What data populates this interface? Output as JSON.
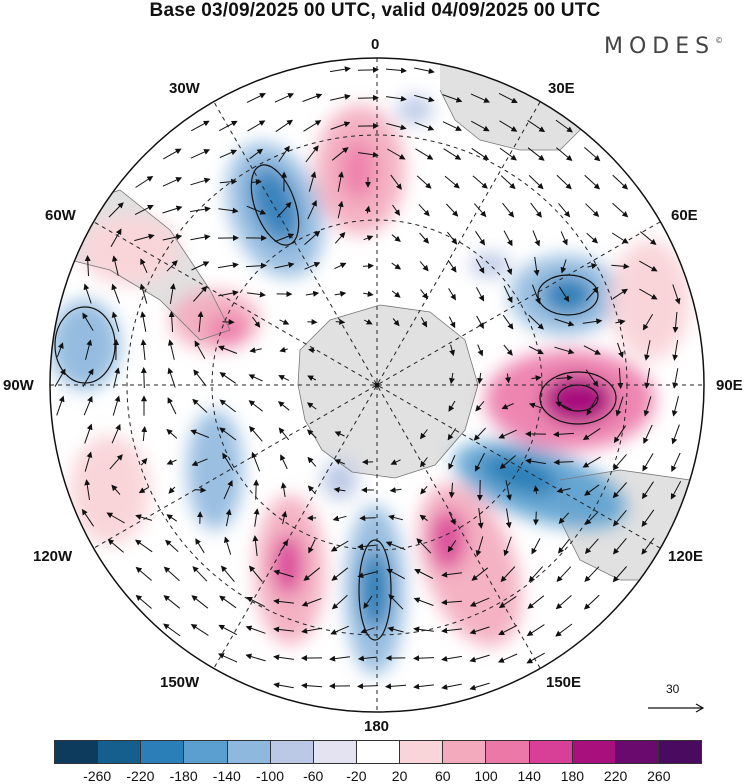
{
  "title": "Base 03/09/2025 00 UTC, valid 04/09/2025 00 UTC",
  "brand": {
    "name": "MODES",
    "mark": "©"
  },
  "longitude_labels": {
    "lon_0": "0",
    "lon_30e": "30E",
    "lon_60e": "60E",
    "lon_90e": "90E",
    "lon_120e": "120E",
    "lon_150e": "150E",
    "lon_180": "180",
    "lon_150w": "150W",
    "lon_120w": "120W",
    "lon_90w": "90W",
    "lon_60w": "60W",
    "lon_30w": "30W"
  },
  "reference_vector": {
    "value": "30"
  },
  "colorbar": {
    "levels": [
      "-260",
      "-220",
      "-180",
      "-140",
      "-100",
      "-60",
      "-20",
      "20",
      "60",
      "100",
      "140",
      "180",
      "220",
      "260"
    ],
    "colors": [
      "#0d3b5e",
      "#155f8f",
      "#2b7fb8",
      "#5a9fcf",
      "#8fb8de",
      "#bcc9e6",
      "#e3e3f1",
      "#ffffff",
      "#f9d5d9",
      "#f3aabd",
      "#ec78a8",
      "#d84097",
      "#a8107e",
      "#6b0a6e",
      "#4a0a5f"
    ]
  }
}
